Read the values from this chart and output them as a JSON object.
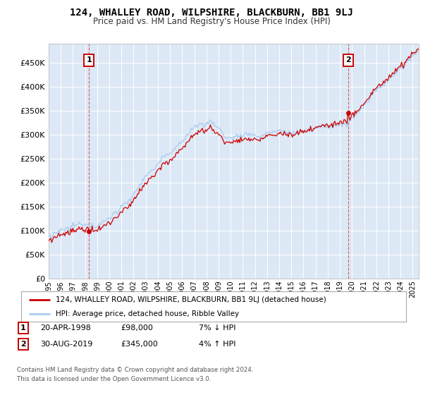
{
  "title1": "124, WHALLEY ROAD, WILPSHIRE, BLACKBURN, BB1 9LJ",
  "title2": "Price paid vs. HM Land Registry's House Price Index (HPI)",
  "ylabel_ticks": [
    "£0",
    "£50K",
    "£100K",
    "£150K",
    "£200K",
    "£250K",
    "£300K",
    "£350K",
    "£400K",
    "£450K"
  ],
  "ytick_vals": [
    0,
    50000,
    100000,
    150000,
    200000,
    250000,
    300000,
    350000,
    400000,
    450000
  ],
  "ylim": [
    0,
    490000
  ],
  "xlim_start": 1995.0,
  "xlim_end": 2025.5,
  "sale1_date": 1998.31,
  "sale1_price": 98000,
  "sale2_date": 2019.66,
  "sale2_price": 345000,
  "property_color": "#cc0000",
  "hpi_color": "#aaccee",
  "legend1": "124, WHALLEY ROAD, WILPSHIRE, BLACKBURN, BB1 9LJ (detached house)",
  "legend2": "HPI: Average price, detached house, Ribble Valley",
  "footer1": "Contains HM Land Registry data © Crown copyright and database right 2024.",
  "footer2": "This data is licensed under the Open Government Licence v3.0.",
  "plot_bg": "#dce8f5"
}
